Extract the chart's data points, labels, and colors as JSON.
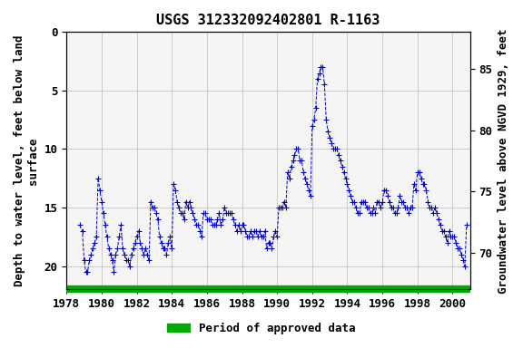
{
  "title": "USGS 312332092402801 R-1163",
  "xlabel_left": "Depth to water level, feet below land\nsurface",
  "ylabel_right": "Groundwater level above NGVD 1929, feet",
  "legend_label": "Period of approved data",
  "legend_color": "#00aa00",
  "line_color": "#0000cc",
  "marker": "+",
  "background_color": "#ffffff",
  "plot_bg": "#f0f0f0",
  "xlim": [
    1978,
    2001
  ],
  "ylim_left": [
    22,
    1
  ],
  "ylim_right": [
    67,
    88
  ],
  "xticks": [
    1978,
    1980,
    1982,
    1984,
    1986,
    1988,
    1990,
    1992,
    1994,
    1996,
    1998,
    2000
  ],
  "yticks_left": [
    0,
    5,
    10,
    15,
    20
  ],
  "yticks_right": [
    70,
    75,
    80,
    85
  ],
  "grid_color": "#bbbbbb",
  "title_fontsize": 11,
  "axis_label_fontsize": 9,
  "tick_fontsize": 9,
  "green_bar_y": -0.08,
  "x_data": [
    1978.75,
    1978.9,
    1979.0,
    1979.1,
    1979.2,
    1979.3,
    1979.4,
    1979.5,
    1979.6,
    1979.7,
    1979.8,
    1979.9,
    1980.0,
    1980.1,
    1980.2,
    1980.3,
    1980.4,
    1980.5,
    1980.6,
    1980.7,
    1980.8,
    1980.9,
    1981.0,
    1981.1,
    1981.2,
    1981.3,
    1981.4,
    1981.5,
    1981.6,
    1981.7,
    1981.8,
    1981.9,
    1982.0,
    1982.1,
    1982.2,
    1982.3,
    1982.4,
    1982.5,
    1982.6,
    1982.7,
    1982.8,
    1982.9,
    1983.0,
    1983.1,
    1983.2,
    1983.3,
    1983.4,
    1983.5,
    1983.6,
    1983.7,
    1983.8,
    1983.9,
    1984.0,
    1984.1,
    1984.2,
    1984.3,
    1984.4,
    1984.5,
    1984.6,
    1984.7,
    1984.8,
    1984.9,
    1985.0,
    1985.1,
    1985.2,
    1985.3,
    1985.4,
    1985.5,
    1985.6,
    1985.7,
    1985.8,
    1985.9,
    1986.0,
    1986.1,
    1986.2,
    1986.3,
    1986.4,
    1986.5,
    1986.6,
    1986.7,
    1986.8,
    1986.9,
    1987.0,
    1987.1,
    1987.2,
    1987.3,
    1987.4,
    1987.5,
    1987.6,
    1987.7,
    1987.8,
    1987.9,
    1988.0,
    1988.1,
    1988.2,
    1988.3,
    1988.4,
    1988.5,
    1988.6,
    1988.7,
    1988.8,
    1988.9,
    1989.0,
    1989.1,
    1989.2,
    1989.3,
    1989.4,
    1989.5,
    1989.6,
    1989.7,
    1989.8,
    1989.9,
    1990.0,
    1990.1,
    1990.2,
    1990.3,
    1990.4,
    1990.5,
    1990.6,
    1990.7,
    1990.8,
    1990.9,
    1991.0,
    1991.1,
    1991.2,
    1991.3,
    1991.4,
    1991.5,
    1991.6,
    1991.7,
    1991.8,
    1991.9,
    1992.0,
    1992.1,
    1992.2,
    1992.3,
    1992.4,
    1992.5,
    1992.6,
    1992.7,
    1992.8,
    1992.9,
    1993.0,
    1993.1,
    1993.2,
    1993.3,
    1993.4,
    1993.5,
    1993.6,
    1993.7,
    1993.8,
    1993.9,
    1994.0,
    1994.1,
    1994.2,
    1994.3,
    1994.4,
    1994.5,
    1994.6,
    1994.7,
    1994.8,
    1994.9,
    1995.0,
    1995.1,
    1995.2,
    1995.3,
    1995.4,
    1995.5,
    1995.6,
    1995.7,
    1995.8,
    1995.9,
    1996.0,
    1996.1,
    1996.2,
    1996.3,
    1996.4,
    1996.5,
    1996.6,
    1996.7,
    1996.8,
    1996.9,
    1997.0,
    1997.1,
    1997.2,
    1997.3,
    1997.4,
    1997.5,
    1997.6,
    1997.7,
    1997.8,
    1997.9,
    1998.0,
    1998.1,
    1998.2,
    1998.3,
    1998.4,
    1998.5,
    1998.6,
    1998.7,
    1998.8,
    1998.9,
    1999.0,
    1999.1,
    1999.2,
    1999.3,
    1999.4,
    1999.5,
    1999.6,
    1999.7,
    1999.8,
    1999.9,
    2000.0,
    2000.1,
    2000.2,
    2000.3,
    2000.4,
    2000.5,
    2000.6,
    2000.7,
    2000.8
  ],
  "y_data": [
    16.5,
    17.0,
    19.5,
    20.5,
    20.5,
    19.5,
    19.0,
    18.5,
    18.0,
    17.5,
    12.5,
    13.5,
    14.5,
    15.5,
    16.5,
    17.5,
    18.5,
    19.0,
    19.5,
    20.5,
    19.0,
    18.5,
    17.5,
    16.5,
    18.5,
    19.0,
    19.5,
    19.5,
    20.0,
    19.0,
    18.5,
    18.0,
    17.5,
    17.0,
    18.0,
    18.5,
    19.0,
    18.5,
    19.0,
    19.5,
    14.5,
    15.0,
    15.0,
    15.5,
    16.0,
    17.5,
    18.0,
    18.5,
    18.5,
    19.0,
    18.0,
    17.5,
    18.5,
    13.0,
    13.5,
    14.5,
    15.0,
    15.5,
    15.5,
    16.0,
    14.5,
    15.0,
    14.5,
    15.0,
    15.5,
    16.0,
    16.5,
    16.5,
    17.0,
    17.5,
    15.5,
    15.5,
    16.0,
    16.0,
    16.0,
    16.5,
    16.5,
    16.5,
    16.0,
    15.5,
    16.5,
    16.0,
    15.0,
    15.5,
    15.5,
    15.5,
    15.5,
    16.0,
    16.5,
    17.0,
    16.5,
    17.0,
    16.5,
    16.5,
    17.0,
    17.5,
    17.5,
    17.0,
    17.5,
    17.0,
    17.0,
    17.5,
    17.0,
    17.5,
    17.5,
    17.0,
    18.5,
    18.0,
    18.0,
    18.5,
    17.5,
    17.0,
    17.5,
    15.0,
    15.0,
    15.0,
    14.5,
    15.0,
    12.0,
    12.5,
    11.5,
    11.0,
    10.5,
    10.0,
    10.0,
    11.0,
    11.0,
    12.0,
    12.5,
    13.0,
    13.5,
    14.0,
    8.0,
    7.5,
    6.5,
    4.0,
    3.5,
    3.0,
    3.0,
    4.5,
    7.5,
    8.5,
    9.0,
    9.5,
    10.0,
    10.0,
    10.0,
    10.5,
    11.0,
    11.5,
    12.0,
    12.5,
    13.0,
    13.5,
    14.0,
    14.5,
    14.5,
    15.0,
    15.5,
    15.5,
    14.5,
    14.5,
    14.5,
    15.0,
    15.0,
    15.5,
    15.5,
    15.0,
    15.5,
    14.5,
    14.5,
    15.0,
    14.5,
    13.5,
    13.5,
    14.0,
    14.5,
    15.0,
    15.0,
    15.5,
    15.5,
    15.0,
    14.0,
    14.5,
    14.5,
    15.0,
    15.0,
    15.5,
    15.0,
    15.0,
    13.0,
    13.5,
    12.0,
    12.0,
    12.5,
    13.0,
    13.0,
    13.5,
    14.5,
    15.0,
    15.0,
    15.5,
    15.0,
    15.5,
    16.0,
    16.5,
    17.0,
    17.0,
    17.5,
    18.0,
    17.0,
    17.5,
    17.5,
    17.5,
    18.0,
    18.5,
    18.5,
    19.0,
    19.5,
    20.0,
    16.5
  ]
}
